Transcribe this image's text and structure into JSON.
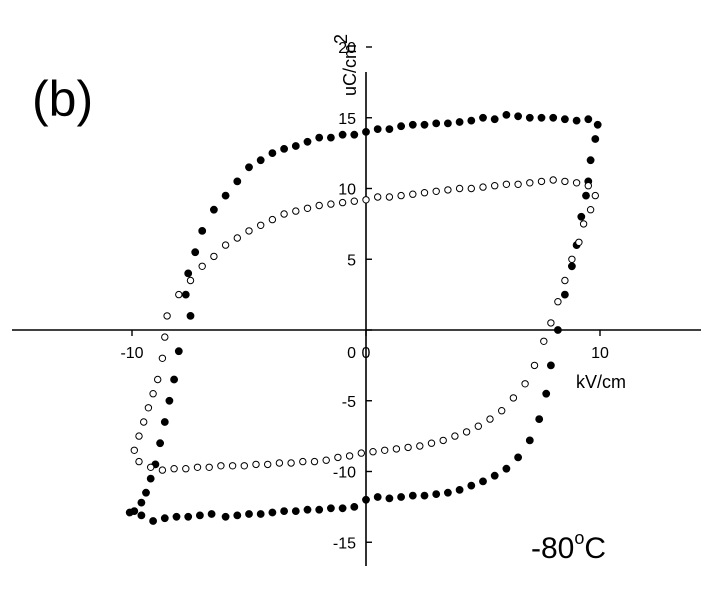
{
  "chart_data": {
    "type": "scatter",
    "panel_label": "(b)",
    "annotation": {
      "value": "-80",
      "sup": "o",
      "unit": "C"
    },
    "x_axis": {
      "label": "kV/cm",
      "range": [
        -15,
        15
      ],
      "ticks": [
        -10,
        0,
        10
      ],
      "tick_labels": [
        "-10",
        "0",
        "10"
      ]
    },
    "y_axis": {
      "label": "uC/cm",
      "label_sup": "2",
      "range": [
        -17,
        20
      ],
      "ticks": [
        -15,
        -10,
        -5,
        0,
        5,
        10,
        15,
        20
      ],
      "tick_labels": [
        "-15",
        "-10",
        "-5",
        "0",
        "5",
        "10",
        "15",
        "20"
      ]
    },
    "grid": false,
    "series": [
      {
        "marker": "filled-circle",
        "points": [
          [
            -7.7,
            2.5
          ],
          [
            -7.5,
            1.0
          ],
          [
            -8.0,
            -1.5
          ],
          [
            -8.2,
            -3.5
          ],
          [
            -8.4,
            -5.0
          ],
          [
            -8.6,
            -6.5
          ],
          [
            -8.8,
            -8.0
          ],
          [
            -9.0,
            -9.5
          ],
          [
            -9.2,
            -10.5
          ],
          [
            -9.4,
            -11.5
          ],
          [
            -9.6,
            -12.2
          ],
          [
            -9.9,
            -12.8
          ],
          [
            -10.1,
            -12.9
          ],
          [
            -9.6,
            -13.1
          ],
          [
            -9.1,
            -13.5
          ],
          [
            -8.6,
            -13.3
          ],
          [
            -8.1,
            -13.2
          ],
          [
            -7.6,
            -13.2
          ],
          [
            -7.1,
            -13.1
          ],
          [
            -6.6,
            -13.0
          ],
          [
            -6.0,
            -13.2
          ],
          [
            -5.5,
            -13.1
          ],
          [
            -5.0,
            -13.0
          ],
          [
            -4.5,
            -13.0
          ],
          [
            -4.0,
            -12.9
          ],
          [
            -3.5,
            -12.8
          ],
          [
            -3.0,
            -12.8
          ],
          [
            -2.5,
            -12.7
          ],
          [
            -2.0,
            -12.7
          ],
          [
            -1.5,
            -12.6
          ],
          [
            -1.0,
            -12.6
          ],
          [
            -0.5,
            -12.5
          ],
          [
            0.0,
            -12.0
          ],
          [
            0.5,
            -11.8
          ],
          [
            1.0,
            -11.9
          ],
          [
            1.5,
            -11.8
          ],
          [
            2.0,
            -11.7
          ],
          [
            2.5,
            -11.7
          ],
          [
            3.0,
            -11.6
          ],
          [
            3.5,
            -11.5
          ],
          [
            4.0,
            -11.3
          ],
          [
            4.5,
            -11.0
          ],
          [
            5.0,
            -10.7
          ],
          [
            5.5,
            -10.3
          ],
          [
            6.0,
            -9.8
          ],
          [
            6.5,
            -9.0
          ],
          [
            7.0,
            -7.8
          ],
          [
            7.4,
            -6.3
          ],
          [
            7.7,
            -4.5
          ],
          [
            7.9,
            -2.5
          ],
          [
            8.2,
            0.0
          ],
          [
            8.5,
            2.5
          ],
          [
            8.8,
            4.5
          ],
          [
            9.0,
            6.0
          ],
          [
            9.2,
            8.0
          ],
          [
            9.4,
            9.5
          ],
          [
            9.5,
            10.5
          ],
          [
            9.6,
            12.0
          ],
          [
            9.8,
            13.5
          ],
          [
            9.9,
            14.5
          ],
          [
            9.5,
            14.9
          ],
          [
            9.0,
            14.8
          ],
          [
            8.5,
            14.9
          ],
          [
            8.0,
            15.0
          ],
          [
            7.5,
            15.0
          ],
          [
            7.0,
            15.0
          ],
          [
            6.5,
            15.1
          ],
          [
            6.0,
            15.2
          ],
          [
            5.5,
            14.9
          ],
          [
            5.0,
            15.0
          ],
          [
            4.5,
            14.8
          ],
          [
            4.0,
            14.7
          ],
          [
            3.5,
            14.6
          ],
          [
            3.0,
            14.6
          ],
          [
            2.5,
            14.5
          ],
          [
            2.0,
            14.5
          ],
          [
            1.5,
            14.4
          ],
          [
            1.0,
            14.2
          ],
          [
            0.5,
            14.2
          ],
          [
            0.0,
            14.0
          ],
          [
            -0.5,
            13.8
          ],
          [
            -1.0,
            13.8
          ],
          [
            -1.5,
            13.6
          ],
          [
            -2.0,
            13.6
          ],
          [
            -2.5,
            13.3
          ],
          [
            -3.0,
            13.0
          ],
          [
            -3.5,
            12.8
          ],
          [
            -4.0,
            12.5
          ],
          [
            -4.5,
            12.0
          ],
          [
            -5.0,
            11.5
          ],
          [
            -5.5,
            10.5
          ],
          [
            -6.0,
            9.5
          ],
          [
            -6.5,
            8.5
          ],
          [
            -7.0,
            7.0
          ],
          [
            -7.3,
            5.5
          ],
          [
            -7.6,
            4.0
          ]
        ]
      },
      {
        "marker": "open-circle",
        "points": [
          [
            -8.5,
            1.0
          ],
          [
            -8.6,
            -0.5
          ],
          [
            -8.7,
            -2.0
          ],
          [
            -8.9,
            -3.5
          ],
          [
            -9.1,
            -4.5
          ],
          [
            -9.3,
            -5.5
          ],
          [
            -9.5,
            -6.5
          ],
          [
            -9.7,
            -7.5
          ],
          [
            -9.9,
            -8.5
          ],
          [
            -9.7,
            -9.3
          ],
          [
            -9.2,
            -9.7
          ],
          [
            -8.7,
            -9.9
          ],
          [
            -8.2,
            -9.8
          ],
          [
            -7.7,
            -9.8
          ],
          [
            -7.2,
            -9.7
          ],
          [
            -6.7,
            -9.7
          ],
          [
            -6.2,
            -9.6
          ],
          [
            -5.7,
            -9.6
          ],
          [
            -5.2,
            -9.6
          ],
          [
            -4.7,
            -9.5
          ],
          [
            -4.2,
            -9.5
          ],
          [
            -3.7,
            -9.4
          ],
          [
            -3.2,
            -9.4
          ],
          [
            -2.7,
            -9.3
          ],
          [
            -2.2,
            -9.3
          ],
          [
            -1.7,
            -9.2
          ],
          [
            -1.2,
            -9.0
          ],
          [
            -0.7,
            -8.9
          ],
          [
            -0.2,
            -8.7
          ],
          [
            0.3,
            -8.6
          ],
          [
            0.8,
            -8.5
          ],
          [
            1.3,
            -8.4
          ],
          [
            1.8,
            -8.3
          ],
          [
            2.3,
            -8.2
          ],
          [
            2.8,
            -8.0
          ],
          [
            3.3,
            -7.8
          ],
          [
            3.8,
            -7.5
          ],
          [
            4.3,
            -7.2
          ],
          [
            4.8,
            -6.8
          ],
          [
            5.3,
            -6.3
          ],
          [
            5.8,
            -5.7
          ],
          [
            6.3,
            -4.8
          ],
          [
            6.8,
            -3.8
          ],
          [
            7.2,
            -2.5
          ],
          [
            7.6,
            -0.8
          ],
          [
            7.9,
            0.5
          ],
          [
            8.2,
            2.0
          ],
          [
            8.5,
            3.5
          ],
          [
            8.8,
            5.0
          ],
          [
            9.1,
            6.2
          ],
          [
            9.3,
            7.5
          ],
          [
            9.6,
            8.5
          ],
          [
            9.8,
            9.5
          ],
          [
            9.5,
            10.2
          ],
          [
            9.0,
            10.4
          ],
          [
            8.5,
            10.5
          ],
          [
            8.0,
            10.6
          ],
          [
            7.5,
            10.5
          ],
          [
            7.0,
            10.4
          ],
          [
            6.5,
            10.3
          ],
          [
            6.0,
            10.3
          ],
          [
            5.5,
            10.2
          ],
          [
            5.0,
            10.1
          ],
          [
            4.5,
            10.0
          ],
          [
            4.0,
            10.0
          ],
          [
            3.5,
            9.9
          ],
          [
            3.0,
            9.8
          ],
          [
            2.5,
            9.7
          ],
          [
            2.0,
            9.6
          ],
          [
            1.5,
            9.5
          ],
          [
            1.0,
            9.4
          ],
          [
            0.5,
            9.4
          ],
          [
            0.0,
            9.2
          ],
          [
            -0.5,
            9.1
          ],
          [
            -1.0,
            9.0
          ],
          [
            -1.5,
            8.9
          ],
          [
            -2.0,
            8.8
          ],
          [
            -2.5,
            8.6
          ],
          [
            -3.0,
            8.4
          ],
          [
            -3.5,
            8.2
          ],
          [
            -4.0,
            7.8
          ],
          [
            -4.5,
            7.4
          ],
          [
            -5.0,
            7.0
          ],
          [
            -5.5,
            6.5
          ],
          [
            -6.0,
            6.0
          ],
          [
            -6.5,
            5.2
          ],
          [
            -7.0,
            4.5
          ],
          [
            -7.5,
            3.5
          ],
          [
            -8.0,
            2.5
          ]
        ]
      }
    ]
  }
}
